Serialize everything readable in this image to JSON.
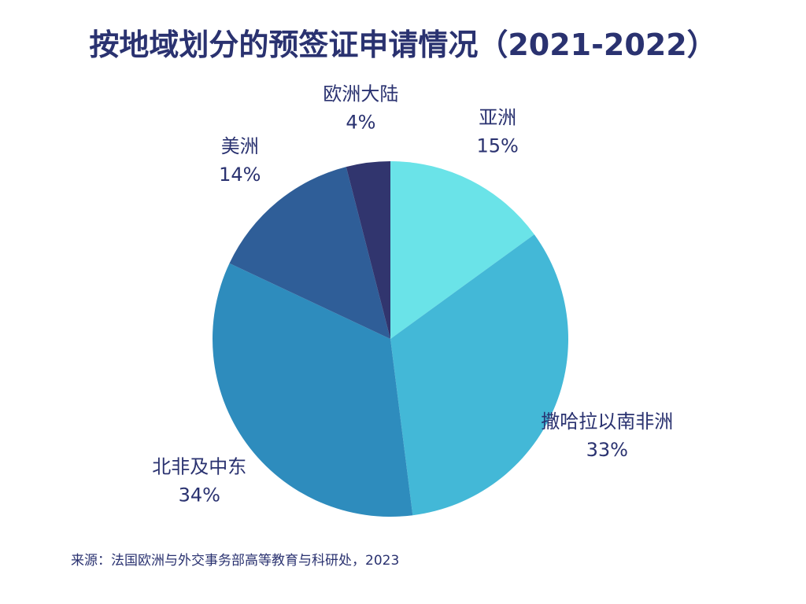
{
  "title": "按地域划分的预签证申请情况（2021-2022）",
  "source": "来源：法国欧洲与外交事务部高等教育与科研处，2023",
  "chart_data": {
    "type": "pie",
    "title": "按地域划分的预签证申请情况（2021-2022）",
    "unit": "%",
    "slices": [
      {
        "label": "亚洲",
        "value": 15,
        "display": "15%",
        "color": "#6ae3e8"
      },
      {
        "label": "撒哈拉以南非洲",
        "value": 33,
        "display": "33%",
        "color": "#43b8d7"
      },
      {
        "label": "北非及中东",
        "value": 34,
        "display": "34%",
        "color": "#2e8cbd"
      },
      {
        "label": "美洲",
        "value": 14,
        "display": "14%",
        "color": "#2f5e98"
      },
      {
        "label": "欧洲大陆",
        "value": 4,
        "display": "4%",
        "color": "#31356e"
      }
    ]
  }
}
